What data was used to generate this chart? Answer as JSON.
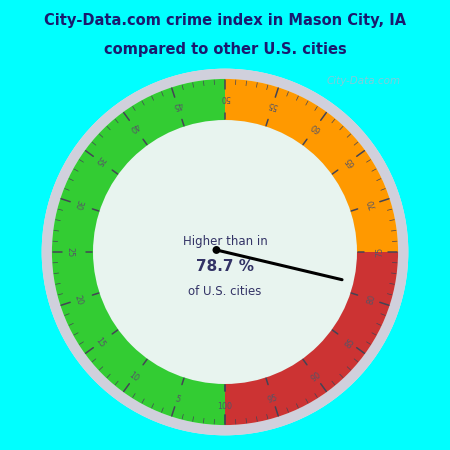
{
  "title_line1": "City-Data.com crime index in Mason City, IA",
  "title_line2": "compared to other U.S. cities",
  "title_color": "#1a1a6e",
  "title_bg_color": "#00ffff",
  "gauge_area_bg": "#d8eee8",
  "inner_circle_color": "#e8f4ef",
  "needle_value": 78.7,
  "center_text_line1": "Higher than in",
  "center_text_line2": "78.7 %",
  "center_text_line3": "of U.S. cities",
  "green_color": "#33cc33",
  "orange_color": "#ff9900",
  "red_color": "#cc3333",
  "outer_rim_color": "#d0d0dc",
  "tick_color": "#555566",
  "label_color": "#555566",
  "watermark_text": "City-Data.com",
  "watermark_color": "#aabbcc"
}
